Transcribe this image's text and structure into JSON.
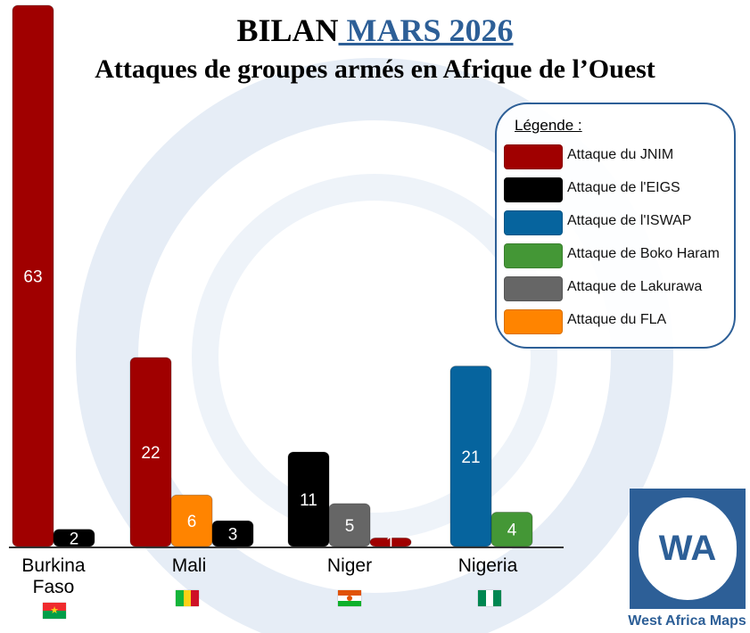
{
  "header": {
    "title_main": "BILAN",
    "title_highlight": " MARS 2026",
    "subtitle": "Attaques de groupes armés en Afrique de l’Ouest"
  },
  "legend": {
    "title": "Légende :",
    "items": [
      {
        "label": "Attaque du JNIM",
        "color": "#a00000"
      },
      {
        "label": "Attaque de l'EIGS",
        "color": "#000000"
      },
      {
        "label": "Attaque de l'ISWAP",
        "color": "#06649e"
      },
      {
        "label": "Attaque de Boko Haram",
        "color": "#449736"
      },
      {
        "label": "Attaque de Lakurawa",
        "color": "#666666"
      },
      {
        "label": "Attaque du FLA",
        "color": "#ff8400"
      }
    ]
  },
  "chart_data": {
    "type": "bar",
    "title": "BILAN MARS 2026",
    "subtitle": "Attaques de groupes armés en Afrique de l’Ouest",
    "categories": [
      {
        "name": "Burkina Faso",
        "lines": [
          "Burkina",
          "Faso"
        ]
      },
      {
        "name": "Mali",
        "lines": [
          "Mali"
        ]
      },
      {
        "name": "Niger",
        "lines": [
          "Niger"
        ]
      },
      {
        "name": "Nigeria",
        "lines": [
          "Nigeria"
        ]
      }
    ],
    "bars": [
      {
        "category": "Burkina Faso",
        "series": "Attaque du JNIM",
        "value": 63,
        "color": "#a00000"
      },
      {
        "category": "Burkina Faso",
        "series": "Attaque de l'EIGS",
        "value": 2,
        "color": "#000000"
      },
      {
        "category": "Mali",
        "series": "Attaque du JNIM",
        "value": 22,
        "color": "#a00000"
      },
      {
        "category": "Mali",
        "series": "Attaque du FLA",
        "value": 6,
        "color": "#ff8400"
      },
      {
        "category": "Mali",
        "series": "Attaque de l'EIGS",
        "value": 3,
        "color": "#000000"
      },
      {
        "category": "Niger",
        "series": "Attaque de l'EIGS",
        "value": 11,
        "color": "#000000"
      },
      {
        "category": "Niger",
        "series": "Attaque de Lakurawa",
        "value": 5,
        "color": "#666666"
      },
      {
        "category": "Niger",
        "series": "Attaque du JNIM",
        "value": 1,
        "color": "#a00000"
      },
      {
        "category": "Nigeria",
        "series": "Attaque de l'ISWAP",
        "value": 21,
        "color": "#06649e"
      },
      {
        "category": "Nigeria",
        "series": "Attaque de Boko Haram",
        "value": 4,
        "color": "#449736"
      }
    ],
    "ylim": [
      0,
      63
    ],
    "grid": false,
    "legend_position": "top-right"
  },
  "flags": {
    "burkina_faso": {
      "colors": [
        "#ef2b2d",
        "#009e49"
      ],
      "star": "#fcd116"
    },
    "mali": {
      "colors": [
        "#14b53a",
        "#fcd116",
        "#ce1126"
      ]
    },
    "niger": {
      "colors": [
        "#e05206",
        "#ffffff",
        "#0db02b"
      ],
      "dot": "#e05206"
    },
    "nigeria": {
      "colors": [
        "#008751",
        "#ffffff",
        "#008751"
      ]
    }
  },
  "logo": {
    "text": "WA",
    "caption": "West Africa Maps",
    "color": "#2d5f97"
  }
}
